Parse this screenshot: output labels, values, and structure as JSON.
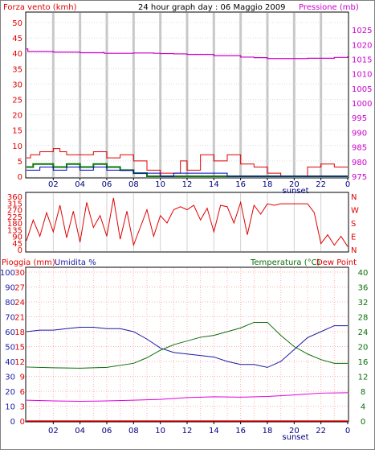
{
  "colors": {
    "wind": "#e00000",
    "pressure": "#cc00cc",
    "gust_fill": "#0a7a0a",
    "wind_avg": "#0000cc",
    "humidity": "#1a1aa6",
    "temperature": "#0a6e0a",
    "dewpoint": "#e000e0",
    "rain": "#e00000",
    "grid": "#d0d0d0",
    "vband": "#c8c8c8",
    "minor_grid": "#f08080"
  },
  "header": {
    "left": "Forza vento (kmh)",
    "center": "24 hour graph day : 06 Maggio 2009",
    "right": "Pressione (mb)"
  },
  "sunset_label": "sunset",
  "x_ticks": [
    "02",
    "04",
    "06",
    "08",
    "10",
    "12",
    "14",
    "16",
    "18",
    "20",
    "22",
    "0"
  ],
  "chart_data": [
    {
      "type": "line",
      "title": "",
      "left_axis": {
        "label": "Forza vento (kmh)",
        "ticks": [
          0,
          5,
          10,
          15,
          20,
          25,
          30,
          35,
          40,
          45,
          50
        ],
        "range": [
          0,
          50
        ]
      },
      "right_axis": {
        "label": "Pressione (mb)",
        "ticks": [
          975,
          980,
          985,
          990,
          995,
          1000,
          1005,
          1010,
          1015,
          1020,
          1025
        ],
        "range": [
          975,
          1027.5
        ]
      },
      "x_range_hours": [
        0,
        24
      ],
      "series": [
        {
          "name": "Pressione (mb)",
          "axis": "right",
          "points": [
            [
              0,
              1018.5
            ],
            [
              0.1,
              1017.6
            ],
            [
              2,
              1017.4
            ],
            [
              4,
              1017.2
            ],
            [
              5.7,
              1017.3
            ],
            [
              5.8,
              1017.0
            ],
            [
              8,
              1017.1
            ],
            [
              9.5,
              1017.0
            ],
            [
              10,
              1016.9
            ],
            [
              11,
              1016.8
            ],
            [
              12,
              1016.6
            ],
            [
              14,
              1016.2
            ],
            [
              16,
              1015.7
            ],
            [
              17,
              1015.5
            ],
            [
              18,
              1015.2
            ],
            [
              20,
              1015.2
            ],
            [
              21,
              1015.3
            ],
            [
              23,
              1015.6
            ],
            [
              24,
              1016.0
            ]
          ]
        },
        {
          "name": "Forza vento (kmh)",
          "axis": "left",
          "points": [
            [
              0,
              6
            ],
            [
              0.3,
              7
            ],
            [
              1,
              8
            ],
            [
              2,
              9
            ],
            [
              2.5,
              8
            ],
            [
              3,
              7
            ],
            [
              4,
              7
            ],
            [
              5,
              8
            ],
            [
              6,
              6
            ],
            [
              7,
              7
            ],
            [
              8,
              5
            ],
            [
              9,
              2
            ],
            [
              10,
              1
            ],
            [
              11,
              1
            ],
            [
              11.5,
              5
            ],
            [
              12,
              2
            ],
            [
              13,
              7
            ],
            [
              14,
              5
            ],
            [
              15,
              7
            ],
            [
              16,
              4
            ],
            [
              17,
              3
            ],
            [
              18,
              1
            ],
            [
              19,
              0
            ],
            [
              20,
              0
            ],
            [
              21,
              3
            ],
            [
              22,
              4
            ],
            [
              23,
              3
            ],
            [
              24,
              3
            ]
          ]
        },
        {
          "name": "wind_avg",
          "axis": "left",
          "points": [
            [
              0,
              2
            ],
            [
              1,
              3
            ],
            [
              2,
              2
            ],
            [
              3,
              3
            ],
            [
              4,
              2
            ],
            [
              5,
              3
            ],
            [
              6,
              2
            ],
            [
              7,
              2
            ],
            [
              8,
              1
            ],
            [
              9,
              1
            ],
            [
              10,
              0
            ],
            [
              11,
              1
            ],
            [
              12,
              1
            ],
            [
              13,
              1
            ],
            [
              14,
              1
            ],
            [
              15,
              0
            ],
            [
              16,
              0
            ],
            [
              17,
              0
            ],
            [
              18,
              0
            ],
            [
              19,
              0
            ],
            [
              20,
              0
            ],
            [
              21,
              0
            ],
            [
              22,
              0
            ],
            [
              23,
              0
            ],
            [
              24,
              0
            ]
          ]
        },
        {
          "name": "gust",
          "axis": "left",
          "points": [
            [
              0,
              3
            ],
            [
              0.5,
              4
            ],
            [
              1,
              4
            ],
            [
              2,
              3
            ],
            [
              3,
              4
            ],
            [
              4,
              3
            ],
            [
              5,
              4
            ],
            [
              6,
              3
            ],
            [
              7,
              2
            ],
            [
              8,
              1
            ],
            [
              9,
              0
            ],
            [
              24,
              0
            ]
          ]
        }
      ]
    },
    {
      "type": "line",
      "title": "",
      "left_axis": {
        "ticks": [
          0,
          45,
          90,
          135,
          180,
          225,
          270,
          315,
          360
        ],
        "range": [
          0,
          360
        ]
      },
      "right_axis": {
        "ticks": [
          "N",
          "W",
          "S",
          "E",
          "N"
        ]
      },
      "x_range_hours": [
        0,
        24
      ],
      "series": [
        {
          "name": "direction",
          "points": [
            [
              0,
              60
            ],
            [
              0.5,
              200
            ],
            [
              1,
              90
            ],
            [
              1.5,
              250
            ],
            [
              2,
              120
            ],
            [
              2.5,
              300
            ],
            [
              3,
              80
            ],
            [
              3.5,
              260
            ],
            [
              4,
              50
            ],
            [
              4.5,
              320
            ],
            [
              5,
              150
            ],
            [
              5.5,
              230
            ],
            [
              6,
              90
            ],
            [
              6.5,
              350
            ],
            [
              7,
              70
            ],
            [
              7.5,
              260
            ],
            [
              8,
              30
            ],
            [
              8.5,
              150
            ],
            [
              9,
              270
            ],
            [
              9.5,
              90
            ],
            [
              10,
              230
            ],
            [
              10.5,
              180
            ],
            [
              11,
              270
            ],
            [
              11.5,
              290
            ],
            [
              12,
              270
            ],
            [
              12.5,
              300
            ],
            [
              13,
              200
            ],
            [
              13.5,
              280
            ],
            [
              14,
              120
            ],
            [
              14.5,
              300
            ],
            [
              15,
              290
            ],
            [
              15.5,
              180
            ],
            [
              16,
              320
            ],
            [
              16.5,
              100
            ],
            [
              17,
              300
            ],
            [
              17.5,
              240
            ],
            [
              18,
              310
            ],
            [
              18.5,
              300
            ],
            [
              19,
              310
            ],
            [
              20,
              310
            ],
            [
              21,
              310
            ],
            [
              21.5,
              250
            ],
            [
              22,
              40
            ],
            [
              22.5,
              100
            ],
            [
              23,
              30
            ],
            [
              23.5,
              90
            ],
            [
              24,
              20
            ]
          ]
        }
      ]
    },
    {
      "type": "line",
      "title": "",
      "left_axis_rain": {
        "label": "Pioggia (mm)",
        "ticks": [
          0,
          3,
          6,
          9,
          12,
          15,
          18,
          21,
          24,
          27,
          30
        ],
        "range": [
          0,
          30
        ]
      },
      "left_axis_humidity": {
        "label": "Umidita %",
        "ticks": [
          0,
          10,
          20,
          30,
          40,
          50,
          60,
          70,
          80,
          90,
          100
        ],
        "range": [
          0,
          100
        ]
      },
      "right_axis": {
        "label": "Temperatura (°C)",
        "ticks": [
          0,
          4,
          8,
          12,
          16,
          20,
          24,
          28,
          32,
          36,
          40
        ],
        "range": [
          0,
          40
        ]
      },
      "right_label_extra": "Dew Point",
      "x_range_hours": [
        0,
        24
      ],
      "series": [
        {
          "name": "Umidita %",
          "axis": "humidity",
          "points": [
            [
              0,
              60
            ],
            [
              1,
              61
            ],
            [
              2,
              61
            ],
            [
              3,
              62
            ],
            [
              4,
              63
            ],
            [
              5,
              63
            ],
            [
              6,
              62
            ],
            [
              7,
              62
            ],
            [
              8,
              60
            ],
            [
              9,
              55
            ],
            [
              10,
              49
            ],
            [
              11,
              46
            ],
            [
              12,
              45
            ],
            [
              13,
              44
            ],
            [
              14,
              43
            ],
            [
              15,
              40
            ],
            [
              16,
              38
            ],
            [
              17,
              38
            ],
            [
              18,
              36
            ],
            [
              19,
              40
            ],
            [
              20,
              48
            ],
            [
              21,
              56
            ],
            [
              22,
              60
            ],
            [
              23,
              64
            ],
            [
              24,
              64
            ]
          ]
        },
        {
          "name": "Temperatura (°C)",
          "axis": "temperature",
          "points": [
            [
              0,
              14.5
            ],
            [
              2,
              14.3
            ],
            [
              4,
              14.2
            ],
            [
              6,
              14.4
            ],
            [
              8,
              15.5
            ],
            [
              9,
              17
            ],
            [
              10,
              19
            ],
            [
              11,
              20.5
            ],
            [
              12,
              21.5
            ],
            [
              13,
              22.5
            ],
            [
              14,
              23
            ],
            [
              15,
              24
            ],
            [
              16,
              25
            ],
            [
              17,
              26.5
            ],
            [
              18,
              26.5
            ],
            [
              19,
              23
            ],
            [
              20,
              20
            ],
            [
              21,
              18
            ],
            [
              22,
              16.5
            ],
            [
              23,
              15.5
            ],
            [
              24,
              15.5
            ]
          ]
        },
        {
          "name": "Dew Point",
          "axis": "temperature",
          "points": [
            [
              0,
              5.6
            ],
            [
              2,
              5.4
            ],
            [
              4,
              5.3
            ],
            [
              6,
              5.4
            ],
            [
              8,
              5.6
            ],
            [
              10,
              5.8
            ],
            [
              12,
              6.3
            ],
            [
              14,
              6.5
            ],
            [
              16,
              6.4
            ],
            [
              18,
              6.6
            ],
            [
              20,
              7.0
            ],
            [
              22,
              7.5
            ],
            [
              24,
              7.6
            ]
          ]
        },
        {
          "name": "Pioggia (mm)",
          "axis": "rain",
          "points": [
            [
              0,
              0
            ],
            [
              24,
              0
            ]
          ]
        }
      ]
    }
  ],
  "panel3_header": {
    "rain_label": "Pioggia (mm)",
    "humidity_label": "Umidita %",
    "temp_label": "Temperatura (°C)",
    "dew_label": "Dew Point"
  },
  "panel2_right_labels": [
    "N",
    "W",
    "S",
    "E",
    "N"
  ]
}
